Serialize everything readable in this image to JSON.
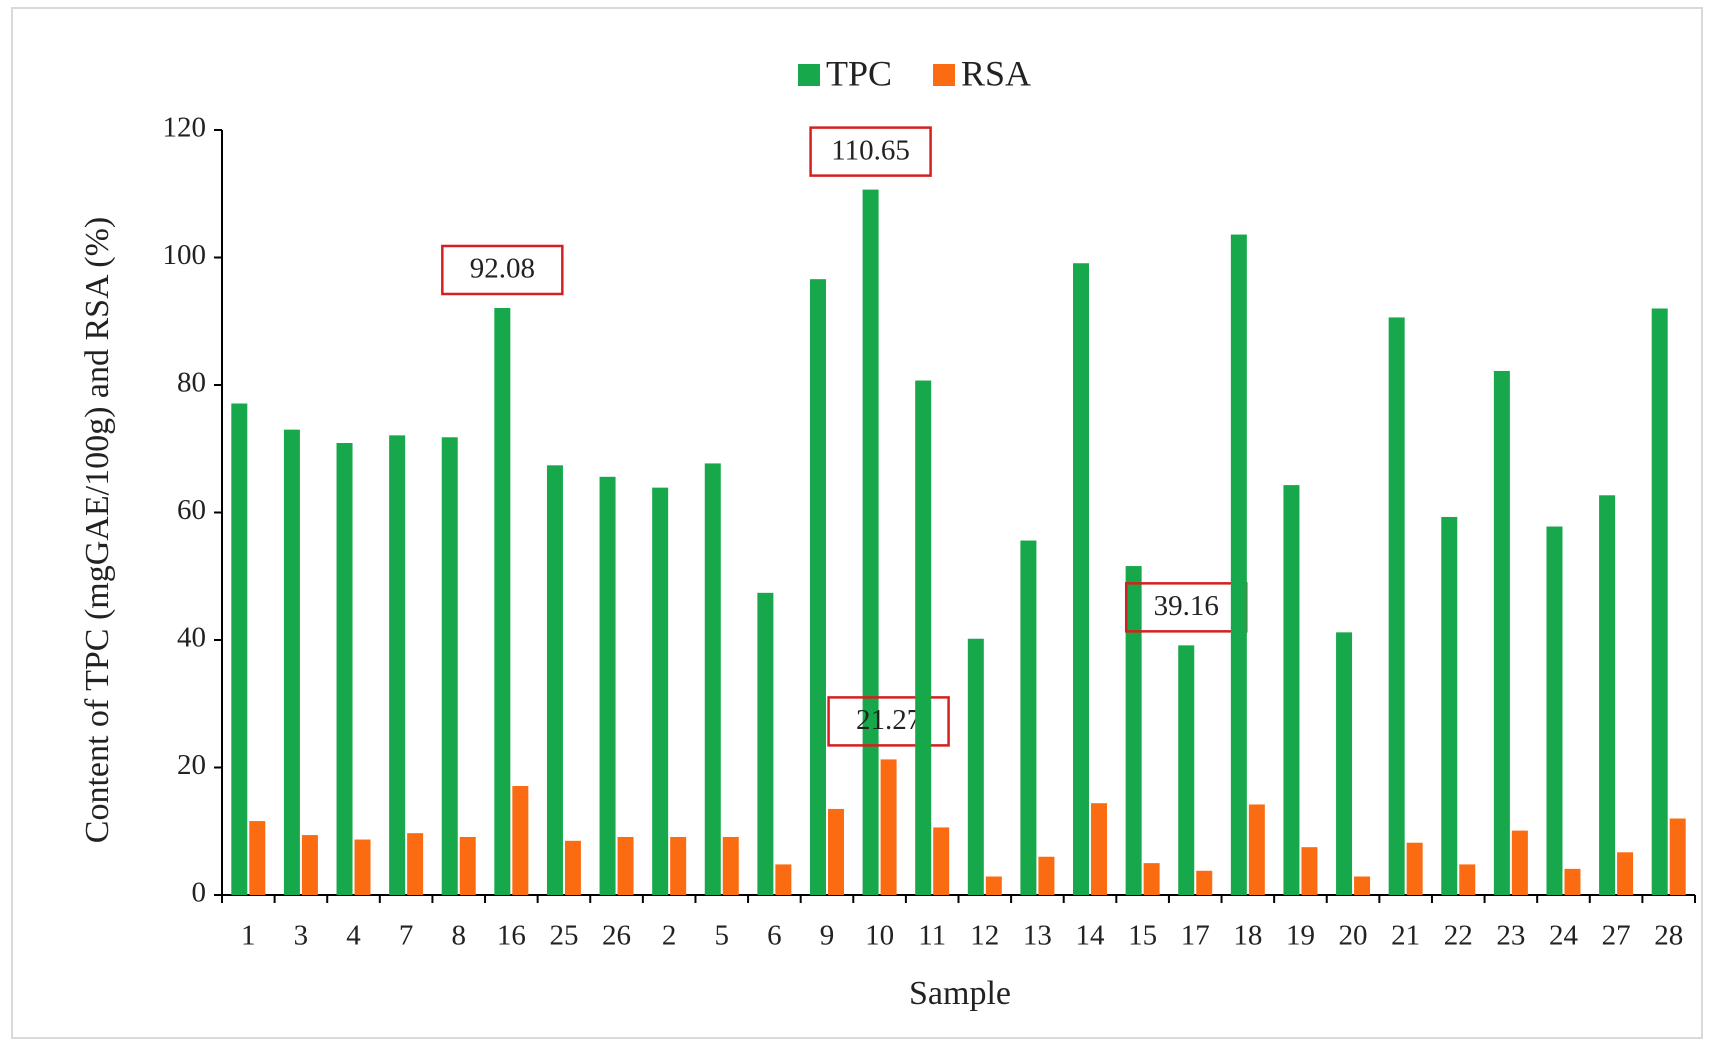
{
  "chart_data": {
    "type": "bar",
    "x_label": "Sample",
    "y_label": "Content of TPC (mgGAE/100g) and RSA (%)",
    "categories": [
      "1",
      "3",
      "4",
      "7",
      "8",
      "16",
      "25",
      "26",
      "2",
      "5",
      "6",
      "9",
      "10",
      "11",
      "12",
      "13",
      "14",
      "15",
      "17",
      "18",
      "19",
      "20",
      "21",
      "22",
      "23",
      "24",
      "27",
      "28"
    ],
    "series": [
      {
        "name": "TPC",
        "color": "#17a84b",
        "values": [
          77.1,
          73.0,
          70.9,
          72.1,
          71.8,
          92.08,
          67.4,
          65.6,
          63.9,
          67.7,
          47.4,
          96.6,
          110.65,
          80.7,
          40.2,
          55.6,
          99.1,
          51.6,
          39.16,
          103.6,
          64.3,
          41.2,
          90.6,
          59.3,
          82.2,
          57.8,
          62.7,
          92.0
        ],
        "value_labels": [
          null,
          null,
          null,
          null,
          null,
          "92.08",
          null,
          null,
          null,
          null,
          null,
          null,
          "110.65",
          null,
          null,
          null,
          null,
          null,
          "39.16",
          null,
          null,
          null,
          null,
          null,
          null,
          null,
          null,
          null
        ]
      },
      {
        "name": "RSA",
        "color": "#fb6c12",
        "values": [
          11.6,
          9.4,
          8.7,
          9.7,
          9.1,
          17.1,
          8.5,
          9.1,
          9.1,
          9.1,
          4.8,
          13.5,
          21.27,
          10.6,
          2.9,
          6.0,
          14.4,
          5.0,
          3.8,
          14.2,
          7.5,
          2.9,
          8.2,
          4.8,
          10.1,
          4.1,
          6.7,
          12.0
        ],
        "value_labels": [
          null,
          null,
          null,
          null,
          null,
          null,
          null,
          null,
          null,
          null,
          null,
          null,
          "21.27",
          null,
          null,
          null,
          null,
          null,
          null,
          null,
          null,
          null,
          null,
          null,
          null,
          null,
          null,
          null
        ]
      }
    ],
    "ylim": [
      0,
      120
    ],
    "yticks": [
      0,
      20,
      40,
      60,
      80,
      100,
      120
    ],
    "legend": "top"
  }
}
